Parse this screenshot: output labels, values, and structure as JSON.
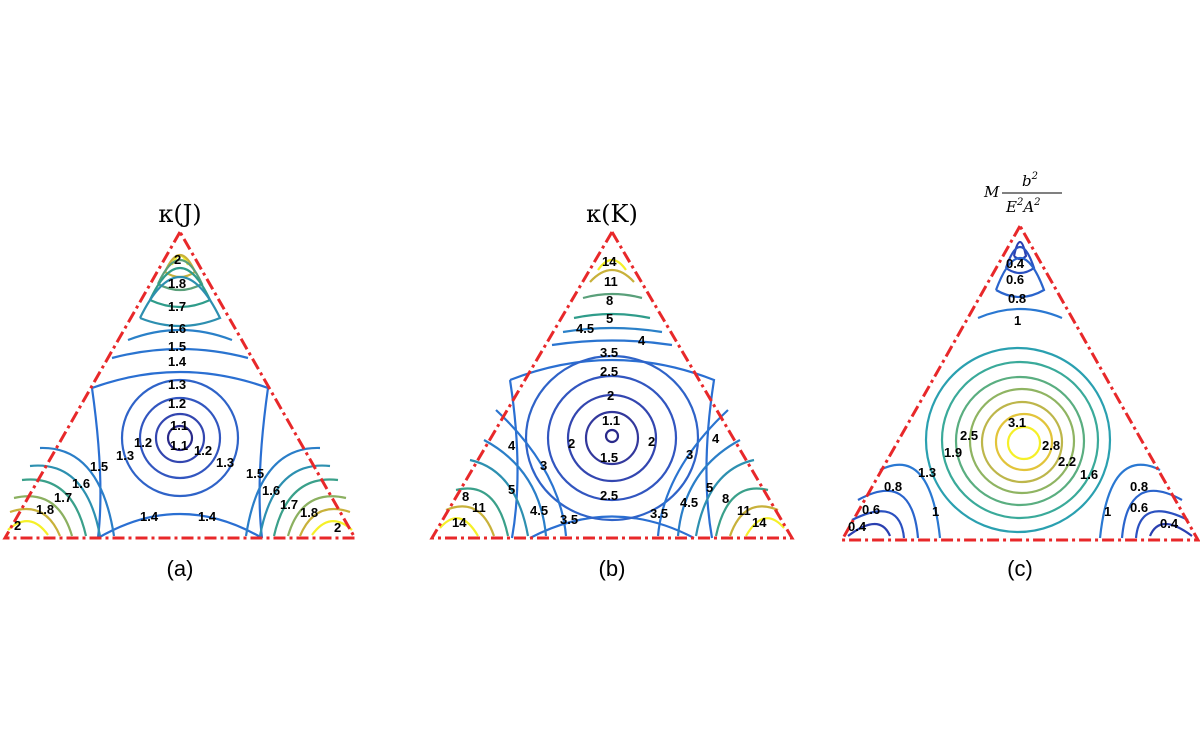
{
  "chart_data": [
    {
      "type": "contour",
      "title": "κ(J)",
      "caption": "(a)",
      "contour_labels": [
        "2",
        "1.8",
        "1.7",
        "1.6",
        "1.5",
        "1.4",
        "1.3",
        "1.2",
        "1.1",
        "1.1",
        "1.2",
        "1.2",
        "1.3",
        "1.3",
        "1.5",
        "1.6",
        "1.7",
        "1.8",
        "2",
        "1.4",
        "1.5",
        "1.6",
        "1.7",
        "1.8",
        "2",
        "1.4"
      ]
    },
    {
      "type": "contour",
      "title": "κ(K)",
      "caption": "(b)",
      "contour_labels": [
        "14",
        "11",
        "8",
        "5",
        "4.5",
        "4",
        "3.5",
        "2.5",
        "2",
        "1.1",
        "2",
        "2",
        "1.5",
        "3",
        "3",
        "4",
        "4",
        "2.5",
        "5",
        "5",
        "4.5",
        "4.5",
        "3.5",
        "3.5",
        "8",
        "8",
        "11",
        "11",
        "14",
        "14"
      ]
    },
    {
      "type": "contour",
      "title": "M b²/E²A²",
      "title_parts": {
        "prefix": "M",
        "numerator": "b",
        "numerator_sup": "2",
        "denominator_e": "E",
        "denominator_e_sup": "2",
        "denominator_a": "A",
        "denominator_a_sup": "2"
      },
      "caption": "(c)",
      "contour_labels": [
        "0.4",
        "0.6",
        "0.8",
        "1",
        "3.1",
        "2.5",
        "2.8",
        "1.9",
        "2.2",
        "1.6",
        "1.3",
        "0.8",
        "0.6",
        "0.4",
        "1",
        "0.8",
        "0.6",
        "0.4",
        "1"
      ]
    }
  ]
}
